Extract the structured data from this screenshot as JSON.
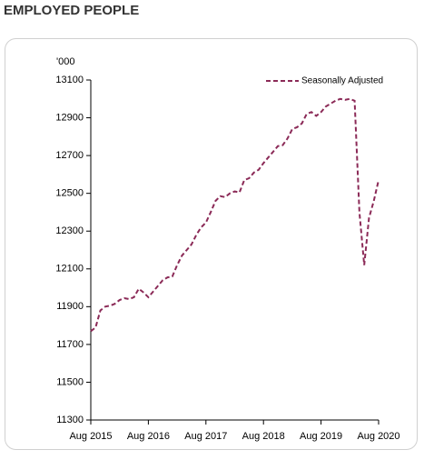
{
  "chart_data": {
    "type": "line",
    "title": "EMPLOYED PEOPLE",
    "y_unit_label": "'000",
    "categories": [
      "Aug 2015",
      null,
      null,
      null,
      null,
      null,
      null,
      null,
      null,
      null,
      null,
      null,
      "Aug 2016",
      null,
      null,
      null,
      null,
      null,
      null,
      null,
      null,
      null,
      null,
      null,
      "Aug 2017",
      null,
      null,
      null,
      null,
      null,
      null,
      null,
      null,
      null,
      null,
      null,
      "Aug 2018",
      null,
      null,
      null,
      null,
      null,
      null,
      null,
      null,
      null,
      null,
      null,
      "Aug 2019",
      null,
      null,
      null,
      null,
      null,
      null,
      null,
      null,
      null,
      null,
      null,
      "Aug 2020"
    ],
    "series": [
      {
        "name": "Seasonally Adjusted",
        "color": "#8b2a57",
        "dashed": true,
        "values": [
          11770,
          11790,
          11880,
          11900,
          11905,
          11915,
          11935,
          11945,
          11940,
          11950,
          11995,
          11975,
          11950,
          11980,
          12010,
          12040,
          12055,
          12060,
          12120,
          12170,
          12200,
          12230,
          12280,
          12320,
          12345,
          12400,
          12460,
          12485,
          12480,
          12500,
          12510,
          12505,
          12570,
          12580,
          12610,
          12625,
          12660,
          12690,
          12720,
          12750,
          12755,
          12790,
          12840,
          12850,
          12870,
          12920,
          12930,
          12910,
          12930,
          12960,
          12975,
          12990,
          13000,
          12995,
          13000,
          12990,
          12400,
          12120,
          12370,
          12460,
          12570
        ]
      }
    ],
    "ylim": [
      11300,
      13100
    ],
    "yticks": [
      11300,
      11500,
      11700,
      11900,
      12100,
      12300,
      12500,
      12700,
      12900,
      13100
    ],
    "grid": false,
    "legend": "upper right"
  }
}
